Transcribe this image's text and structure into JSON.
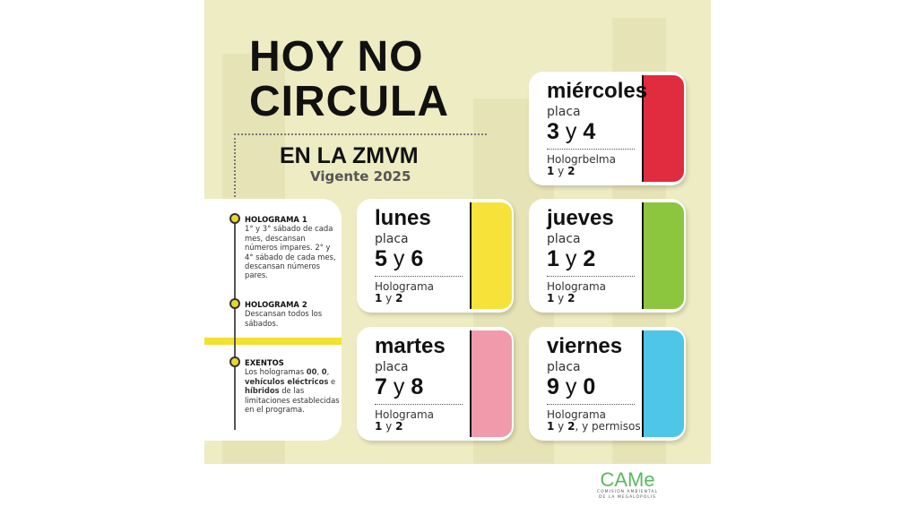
{
  "title": {
    "line1": "HOY NO",
    "line2": "CIRCULA",
    "subtitle": "EN LA ZMVM",
    "validity": "Vigente 2025"
  },
  "info": [
    {
      "heading": "HOLOGRAMA 1",
      "text": "1° y 3° sábado de cada mes, descansan números impares. 2° y 4° sábado de cada mes, descansan números pares."
    },
    {
      "heading": "HOLOGRAMA 2",
      "text": "Descansan todos los sábados."
    },
    {
      "heading": "EXENTOS",
      "t1": "Los hologramas ",
      "b1": "00",
      "t2": ", ",
      "b2": "0",
      "t3": ", ",
      "b3": "vehículos eléctricos",
      "t4": " e ",
      "b4": "híbridos",
      "t5": " de las limitaciones establecidas en el programa."
    }
  ],
  "cards": [
    {
      "day": "miércoles",
      "plate_label": "placa",
      "d1": "3",
      "y": "y",
      "d2": "4",
      "holo_label": "Hologrbelma",
      "h1": "1",
      "hy": " y ",
      "h2": "2",
      "extra": "",
      "color": "#e12b3f"
    },
    {
      "day": "lunes",
      "plate_label": "placa",
      "d1": "5",
      "y": "y",
      "d2": "6",
      "holo_label": "Holograma",
      "h1": "1",
      "hy": " y ",
      "h2": "2",
      "extra": "",
      "color": "#f7e23a"
    },
    {
      "day": "jueves",
      "plate_label": "placa",
      "d1": "1",
      "y": "y",
      "d2": "2",
      "holo_label": "Holograma",
      "h1": "1",
      "hy": " y ",
      "h2": "2",
      "extra": "",
      "color": "#8cc63f"
    },
    {
      "day": "martes",
      "plate_label": "placa",
      "d1": "7",
      "y": "y",
      "d2": "8",
      "holo_label": "Holograma",
      "h1": "1",
      "hy": " y ",
      "h2": "2",
      "extra": "",
      "color": "#f19aab"
    },
    {
      "day": "viernes",
      "plate_label": "placa",
      "d1": "9",
      "y": "y",
      "d2": "0",
      "holo_label": "Holograma",
      "h1": "1",
      "hy": " y ",
      "h2": "2",
      "extra": ", y permisos",
      "color": "#4ec6e8"
    }
  ],
  "logo": {
    "text": "CAMe",
    "line1": "COMISIÓN AMBIENTAL",
    "line2": "DE LA MEGALÓPOLIS",
    "color": "#5cb85c"
  }
}
